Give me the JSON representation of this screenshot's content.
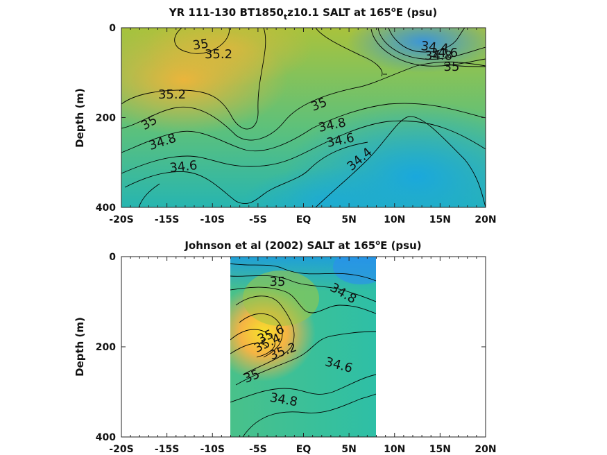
{
  "chart_data": [
    {
      "type": "heatmap",
      "title_main": "YR 111-130 BT1850",
      "title_sub": "t",
      "title_rest": "z10.1 SALT at 165",
      "title_sup": "o",
      "title_end": "E (psu)",
      "ylabel": "Depth (m)",
      "ylim": [
        400,
        0
      ],
      "y_ticks": [
        "0",
        "200",
        "400"
      ],
      "x_ticks": [
        "-20S",
        "-15S",
        "-10S",
        "-5S",
        "EQ",
        "5N",
        "10N",
        "15N",
        "20N"
      ],
      "xlim": [
        -20,
        20
      ],
      "contour_labels": [
        "35",
        "35.2",
        "35.2",
        "35",
        "34.8",
        "34.6",
        "35",
        "34.8",
        "34.6",
        "34.4",
        "34.4",
        "34.6",
        "34.8",
        "35"
      ]
    },
    {
      "type": "heatmap",
      "title_main": "Johnson et al (2002) SALT at 165",
      "title_sup": "o",
      "title_end": "E (psu)",
      "ylabel": "Depth (m)",
      "ylim": [
        400,
        0
      ],
      "y_ticks": [
        "0",
        "200",
        "400"
      ],
      "x_ticks": [
        "-20S",
        "-15S",
        "-10S",
        "-5S",
        "EQ",
        "5N",
        "10N",
        "15N",
        "20N"
      ],
      "xlim": [
        -20,
        20
      ],
      "data_range_lon": [
        -8,
        8
      ],
      "contour_labels": [
        "35",
        "34.8",
        "35.6",
        "35.4",
        "35.2",
        "35",
        "34.6",
        "34.8"
      ]
    }
  ]
}
